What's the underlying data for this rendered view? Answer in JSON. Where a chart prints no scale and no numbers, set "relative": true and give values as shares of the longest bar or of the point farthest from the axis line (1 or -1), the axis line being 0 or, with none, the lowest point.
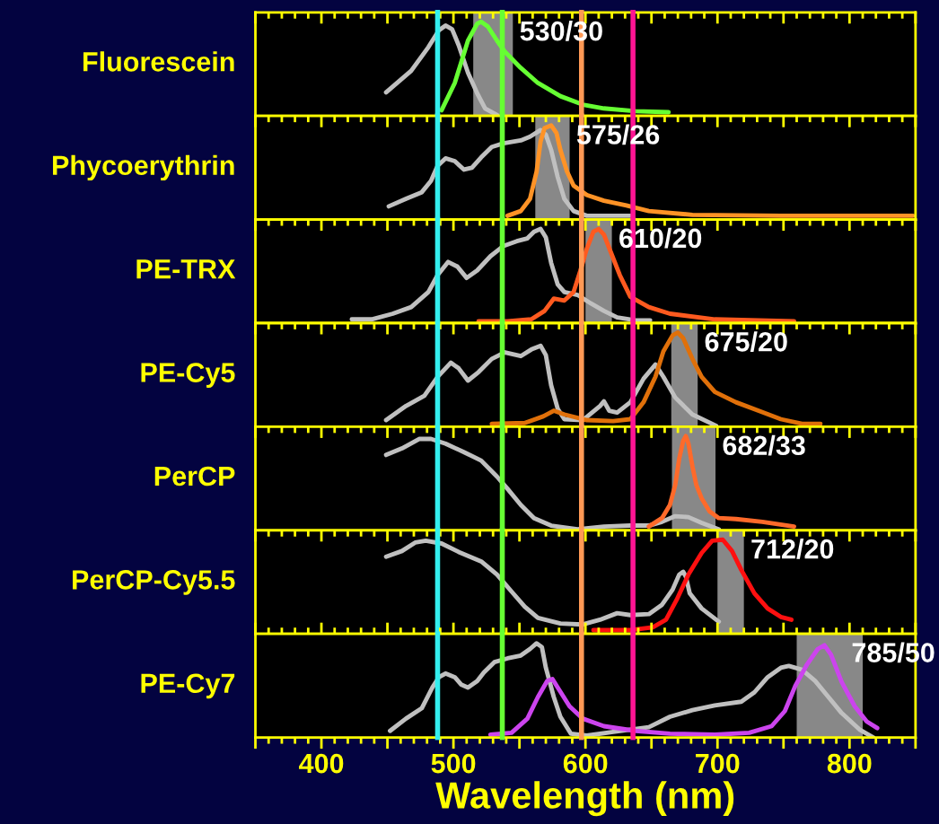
{
  "chart_data": [
    {
      "type": "line",
      "title": "Fluorescein",
      "relative": true,
      "xlim": [
        350,
        850
      ],
      "xticks": [
        {
          "value": 350,
          "label": null
        },
        400,
        {
          "value": 450,
          "label": null
        },
        500,
        {
          "value": 550,
          "label": null
        },
        600,
        {
          "value": 650,
          "label": null
        },
        700,
        {
          "value": 750,
          "label": null
        },
        800,
        {
          "value": 850,
          "label": null
        }
      ],
      "tick_labels": false,
      "bands": [
        {
          "axis": "x",
          "from": 515,
          "to": 545,
          "label": "530/30",
          "color": "#888888"
        }
      ],
      "ref_lines": [
        {
          "axis": "x",
          "value": 488,
          "color": "#33eeee"
        },
        {
          "axis": "x",
          "value": 537,
          "color": "#66ff33"
        },
        {
          "axis": "x",
          "value": 597,
          "color": "#ff9955"
        },
        {
          "axis": "x",
          "value": 636,
          "color": "#ff1493"
        }
      ],
      "series": [
        {
          "color": "#c0c0c0",
          "x": [
            449,
            468,
            481,
            489,
            494,
            499,
            504,
            511,
            518,
            524,
            533
          ],
          "values": [
            0.25,
            0.48,
            0.73,
            0.91,
            0.96,
            0.92,
            0.75,
            0.46,
            0.24,
            0.08,
            0.01
          ]
        },
        {
          "color": "#66ff33",
          "x": [
            491,
            501,
            511,
            518,
            521,
            526,
            533,
            539,
            551,
            564,
            581,
            598,
            614,
            638,
            663
          ],
          "values": [
            0.06,
            0.35,
            0.8,
            0.98,
            1.0,
            0.95,
            0.8,
            0.68,
            0.51,
            0.35,
            0.21,
            0.12,
            0.08,
            0.05,
            0.04
          ]
        }
      ]
    },
    {
      "type": "line",
      "title": "Phycoerythrin",
      "relative": true,
      "xlim": [
        350,
        850
      ],
      "xticks": [
        {
          "value": 350,
          "label": null
        },
        400,
        {
          "value": 450,
          "label": null
        },
        500,
        {
          "value": 550,
          "label": null
        },
        600,
        {
          "value": 650,
          "label": null
        },
        700,
        {
          "value": 750,
          "label": null
        },
        800,
        {
          "value": 850,
          "label": null
        }
      ],
      "tick_labels": false,
      "bands": [
        {
          "axis": "x",
          "from": 562,
          "to": 588,
          "label": "575/26",
          "color": "#888888"
        }
      ],
      "ref_lines": [
        {
          "axis": "x",
          "value": 488,
          "color": "#33eeee"
        },
        {
          "axis": "x",
          "value": 537,
          "color": "#66ff33"
        },
        {
          "axis": "x",
          "value": 597,
          "color": "#ff9955"
        },
        {
          "axis": "x",
          "value": 636,
          "color": "#ff1493"
        }
      ],
      "series": [
        {
          "color": "#c0c0c0",
          "x": [
            451,
            464,
            476,
            483,
            488,
            494,
            501,
            508,
            514,
            521,
            529,
            538,
            551,
            558,
            566,
            570,
            574,
            579,
            584,
            591,
            601,
            634
          ],
          "values": [
            0.14,
            0.22,
            0.29,
            0.41,
            0.57,
            0.65,
            0.62,
            0.53,
            0.55,
            0.66,
            0.77,
            0.81,
            0.84,
            0.88,
            0.95,
            0.9,
            0.74,
            0.45,
            0.22,
            0.09,
            0.04,
            0.04
          ]
        },
        {
          "color": "#ff9326",
          "x": [
            541,
            551,
            558,
            563,
            566,
            569,
            574,
            578,
            581,
            586,
            591,
            601,
            614,
            631,
            648,
            681,
            748,
            848
          ],
          "values": [
            0.04,
            0.09,
            0.22,
            0.51,
            0.83,
            0.97,
            1.0,
            0.92,
            0.74,
            0.51,
            0.36,
            0.26,
            0.2,
            0.15,
            0.09,
            0.05,
            0.04,
            0.04
          ]
        }
      ]
    },
    {
      "type": "line",
      "title": "PE-TRX",
      "relative": true,
      "xlim": [
        350,
        850
      ],
      "xticks": [
        {
          "value": 350,
          "label": null
        },
        400,
        {
          "value": 450,
          "label": null
        },
        500,
        {
          "value": 550,
          "label": null
        },
        600,
        {
          "value": 650,
          "label": null
        },
        700,
        {
          "value": 750,
          "label": null
        },
        800,
        {
          "value": 850,
          "label": null
        }
      ],
      "tick_labels": false,
      "bands": [
        {
          "axis": "x",
          "from": 600,
          "to": 620,
          "label": "610/20",
          "color": "#888888"
        }
      ],
      "ref_lines": [
        {
          "axis": "x",
          "value": 488,
          "color": "#33eeee"
        },
        {
          "axis": "x",
          "value": 537,
          "color": "#66ff33"
        },
        {
          "axis": "x",
          "value": 597,
          "color": "#ff9955"
        },
        {
          "axis": "x",
          "value": 636,
          "color": "#ff1493"
        }
      ],
      "series": [
        {
          "color": "#c0c0c0",
          "x": [
            423,
            438,
            454,
            468,
            481,
            488,
            496,
            503,
            510,
            518,
            528,
            538,
            548,
            556,
            561,
            566,
            570,
            574,
            579,
            584,
            594,
            604,
            614,
            624,
            638,
            649
          ],
          "values": [
            0.04,
            0.04,
            0.1,
            0.17,
            0.33,
            0.51,
            0.65,
            0.6,
            0.48,
            0.56,
            0.71,
            0.82,
            0.87,
            0.9,
            0.97,
            1.0,
            0.91,
            0.64,
            0.41,
            0.33,
            0.3,
            0.21,
            0.13,
            0.06,
            0.03,
            0.03
          ]
        },
        {
          "color": "#ff5a1f",
          "x": [
            519,
            541,
            559,
            569,
            576,
            584,
            591,
            596,
            601,
            606,
            610,
            614,
            619,
            626,
            634,
            648,
            664,
            698,
            758
          ],
          "values": [
            0.02,
            0.02,
            0.04,
            0.13,
            0.26,
            0.24,
            0.33,
            0.55,
            0.79,
            0.97,
            1.0,
            0.94,
            0.76,
            0.51,
            0.28,
            0.17,
            0.1,
            0.04,
            0.02
          ]
        }
      ]
    },
    {
      "type": "line",
      "title": "PE-Cy5",
      "relative": true,
      "xlim": [
        350,
        850
      ],
      "xticks": [
        {
          "value": 350,
          "label": null
        },
        400,
        {
          "value": 450,
          "label": null
        },
        500,
        {
          "value": 550,
          "label": null
        },
        600,
        {
          "value": 650,
          "label": null
        },
        700,
        {
          "value": 750,
          "label": null
        },
        800,
        {
          "value": 850,
          "label": null
        }
      ],
      "tick_labels": false,
      "bands": [
        {
          "axis": "x",
          "from": 665,
          "to": 685,
          "label": "675/20",
          "color": "#888888"
        }
      ],
      "ref_lines": [
        {
          "axis": "x",
          "value": 488,
          "color": "#33eeee"
        },
        {
          "axis": "x",
          "value": 537,
          "color": "#66ff33"
        },
        {
          "axis": "x",
          "value": 597,
          "color": "#ff9955"
        },
        {
          "axis": "x",
          "value": 636,
          "color": "#ff1493"
        }
      ],
      "series": [
        {
          "color": "#c0c0c0",
          "x": [
            449,
            464,
            478,
            488,
            498,
            504,
            511,
            519,
            529,
            539,
            551,
            559,
            566,
            570,
            574,
            579,
            584,
            598,
            611,
            614,
            618,
            624,
            634,
            644,
            653,
            659,
            668,
            681,
            699
          ],
          "values": [
            0.07,
            0.22,
            0.33,
            0.53,
            0.68,
            0.62,
            0.49,
            0.58,
            0.72,
            0.79,
            0.75,
            0.82,
            0.86,
            0.76,
            0.44,
            0.19,
            0.08,
            0.07,
            0.22,
            0.27,
            0.17,
            0.15,
            0.26,
            0.51,
            0.66,
            0.53,
            0.31,
            0.13,
            0.01
          ]
        },
        {
          "color": "#e0700a",
          "x": [
            529,
            554,
            568,
            576,
            584,
            601,
            621,
            634,
            644,
            653,
            659,
            666,
            670,
            674,
            681,
            688,
            698,
            714,
            731,
            748,
            764,
            778
          ],
          "values": [
            0.03,
            0.04,
            0.11,
            0.17,
            0.13,
            0.07,
            0.06,
            0.08,
            0.26,
            0.53,
            0.8,
            0.97,
            1.0,
            0.94,
            0.72,
            0.53,
            0.37,
            0.26,
            0.17,
            0.08,
            0.03,
            0.03
          ]
        }
      ]
    },
    {
      "type": "line",
      "title": "PerCP",
      "relative": true,
      "xlim": [
        350,
        850
      ],
      "xticks": [
        {
          "value": 350,
          "label": null
        },
        400,
        {
          "value": 450,
          "label": null
        },
        500,
        {
          "value": 550,
          "label": null
        },
        600,
        {
          "value": 650,
          "label": null
        },
        700,
        {
          "value": 750,
          "label": null
        },
        800,
        {
          "value": 850,
          "label": null
        }
      ],
      "tick_labels": false,
      "bands": [
        {
          "axis": "x",
          "from": 665.5,
          "to": 698.5,
          "label": "682/33",
          "color": "#888888"
        }
      ],
      "ref_lines": [
        {
          "axis": "x",
          "value": 488,
          "color": "#33eeee"
        },
        {
          "axis": "x",
          "value": 537,
          "color": "#66ff33"
        },
        {
          "axis": "x",
          "value": 597,
          "color": "#ff9955"
        },
        {
          "axis": "x",
          "value": 636,
          "color": "#ff1493"
        }
      ],
      "series": [
        {
          "color": "#c0c0c0",
          "x": [
            449,
            461,
            474,
            483,
            494,
            508,
            521,
            533,
            541,
            551,
            561,
            574,
            594,
            614,
            634,
            648,
            658,
            668,
            678,
            688,
            701
          ],
          "values": [
            0.8,
            0.87,
            0.97,
            0.97,
            0.92,
            0.83,
            0.74,
            0.57,
            0.44,
            0.27,
            0.13,
            0.05,
            0.01,
            0.04,
            0.05,
            0.05,
            0.09,
            0.15,
            0.14,
            0.08,
            0.01
          ]
        },
        {
          "color": "#ff6a2a",
          "x": [
            648,
            658,
            664,
            668,
            671,
            674,
            676,
            678,
            681,
            684,
            688,
            694,
            701,
            714,
            734,
            758
          ],
          "values": [
            0.04,
            0.13,
            0.27,
            0.48,
            0.76,
            0.95,
            1.0,
            0.92,
            0.68,
            0.48,
            0.34,
            0.2,
            0.13,
            0.12,
            0.09,
            0.04
          ]
        }
      ]
    },
    {
      "type": "line",
      "title": "PerCP-Cy5.5",
      "relative": true,
      "xlim": [
        350,
        850
      ],
      "xticks": [
        {
          "value": 350,
          "label": null
        },
        400,
        {
          "value": 450,
          "label": null
        },
        500,
        {
          "value": 550,
          "label": null
        },
        600,
        {
          "value": 650,
          "label": null
        },
        700,
        {
          "value": 750,
          "label": null
        },
        800,
        {
          "value": 850,
          "label": null
        }
      ],
      "tick_labels": false,
      "bands": [
        {
          "axis": "x",
          "from": 700,
          "to": 720,
          "label": "712/20",
          "color": "#888888"
        }
      ],
      "ref_lines": [
        {
          "axis": "x",
          "value": 488,
          "color": "#33eeee"
        },
        {
          "axis": "x",
          "value": 537,
          "color": "#66ff33"
        },
        {
          "axis": "x",
          "value": 597,
          "color": "#ff9955"
        },
        {
          "axis": "x",
          "value": 636,
          "color": "#ff1493"
        }
      ],
      "series": [
        {
          "color": "#c0c0c0",
          "x": [
            449,
            461,
            471,
            479,
            491,
            504,
            521,
            533,
            544,
            554,
            564,
            581,
            598,
            611,
            624,
            634,
            648,
            658,
            666,
            671,
            674,
            676,
            679,
            688,
            701
          ],
          "values": [
            0.82,
            0.88,
            0.97,
            0.99,
            0.96,
            0.87,
            0.77,
            0.63,
            0.45,
            0.29,
            0.17,
            0.11,
            0.1,
            0.15,
            0.22,
            0.2,
            0.21,
            0.31,
            0.47,
            0.63,
            0.66,
            0.61,
            0.43,
            0.27,
            0.13
          ]
        },
        {
          "color": "#ff1010",
          "x": [
            606,
            634,
            651,
            661,
            669,
            678,
            688,
            696,
            704,
            711,
            718,
            728,
            738,
            748,
            756
          ],
          "values": [
            0.04,
            0.04,
            0.07,
            0.15,
            0.36,
            0.63,
            0.86,
            0.99,
            1.0,
            0.88,
            0.68,
            0.43,
            0.27,
            0.18,
            0.15
          ]
        }
      ]
    },
    {
      "type": "line",
      "title": "PE-Cy7",
      "relative": true,
      "xlim": [
        350,
        850
      ],
      "xticks": [
        {
          "value": 350,
          "label": null
        },
        400,
        {
          "value": 450,
          "label": null
        },
        500,
        {
          "value": 550,
          "label": null
        },
        600,
        {
          "value": 650,
          "label": null
        },
        700,
        {
          "value": 750,
          "label": null
        },
        800,
        {
          "value": 850,
          "label": null
        }
      ],
      "xlabel": "Wavelength (nm)",
      "bands": [
        {
          "axis": "x",
          "from": 760,
          "to": 810,
          "label": "785/50",
          "color": "#888888"
        }
      ],
      "ref_lines": [
        {
          "axis": "x",
          "value": 488,
          "color": "#33eeee"
        },
        {
          "axis": "x",
          "value": 537,
          "color": "#66ff33"
        },
        {
          "axis": "x",
          "value": 597,
          "color": "#ff9955"
        },
        {
          "axis": "x",
          "value": 636,
          "color": "#ff1493"
        }
      ],
      "series": [
        {
          "color": "#c0c0c0",
          "x": [
            452,
            464,
            476,
            484,
            489,
            494,
            501,
            506,
            511,
            518,
            523,
            531,
            541,
            551,
            558,
            563,
            567,
            570,
            576,
            581,
            589,
            601,
            621,
            648,
            664,
            681,
            698,
            718,
            728,
            738,
            748,
            754,
            764,
            774,
            784,
            794,
            808,
            818
          ],
          "values": [
            0.07,
            0.2,
            0.31,
            0.53,
            0.64,
            0.68,
            0.64,
            0.56,
            0.53,
            0.6,
            0.69,
            0.8,
            0.84,
            0.87,
            0.94,
            1.0,
            0.96,
            0.74,
            0.43,
            0.22,
            0.04,
            0.02,
            0.06,
            0.11,
            0.22,
            0.29,
            0.34,
            0.38,
            0.48,
            0.64,
            0.74,
            0.76,
            0.72,
            0.6,
            0.43,
            0.26,
            0.08,
            0.0
          ]
        },
        {
          "color": "#cc44ee",
          "x": [
            528,
            544,
            556,
            564,
            571,
            575,
            579,
            588,
            598,
            614,
            638,
            664,
            698,
            724,
            741,
            751,
            759,
            768,
            776,
            781,
            786,
            794,
            804,
            813,
            821
          ],
          "values": [
            0.03,
            0.05,
            0.2,
            0.43,
            0.6,
            0.62,
            0.53,
            0.33,
            0.2,
            0.12,
            0.07,
            0.04,
            0.03,
            0.05,
            0.12,
            0.28,
            0.55,
            0.78,
            0.94,
            0.98,
            0.88,
            0.59,
            0.33,
            0.17,
            0.1
          ]
        }
      ]
    }
  ]
}
